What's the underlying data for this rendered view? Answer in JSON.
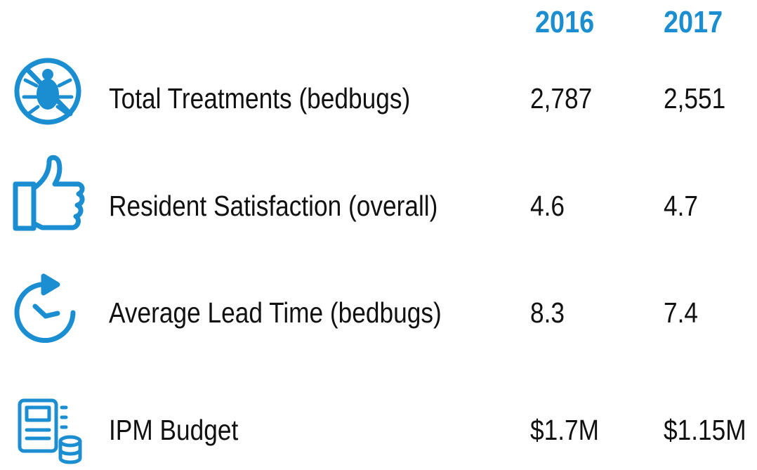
{
  "table": {
    "columns": [
      "2016",
      "2017"
    ],
    "rows": [
      [
        "Total Treatments (bedbugs)",
        "2,787",
        "2,551"
      ],
      [
        "Resident Satisfaction (overall)",
        "4.6",
        "4.7"
      ],
      [
        "Average Lead Time (bedbugs)",
        "8.3",
        "7.4"
      ],
      [
        "IPM Budget",
        "$1.7M",
        "$1.15M"
      ]
    ]
  }
}
